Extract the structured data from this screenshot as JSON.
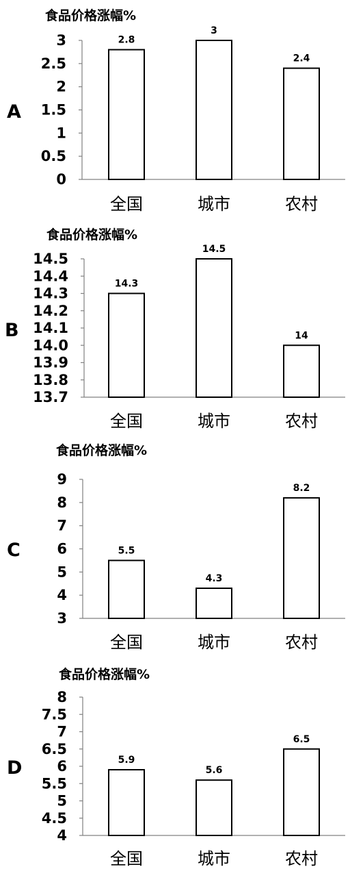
{
  "chart_data": [
    {
      "type": "bar",
      "panel_label": "A",
      "title": "食品价格涨幅%",
      "categories": [
        "全国",
        "城市",
        "农村"
      ],
      "values": [
        2.8,
        3,
        2.4
      ],
      "value_labels": [
        "2.8",
        "3",
        "2.4"
      ],
      "ylim": [
        0,
        3
      ],
      "yticks": [
        "0",
        "0.5",
        "1",
        "1.5",
        "2",
        "2.5",
        "3"
      ],
      "grid": false
    },
    {
      "type": "bar",
      "panel_label": "B",
      "title": "食品价格涨幅%",
      "categories": [
        "全国",
        "城市",
        "农村"
      ],
      "values": [
        14.3,
        14.5,
        14.0
      ],
      "value_labels": [
        "14.3",
        "14.5",
        "14"
      ],
      "ylim": [
        13.7,
        14.5
      ],
      "yticks": [
        "13.7",
        "13.8",
        "13.9",
        "14.0",
        "14.1",
        "14.2",
        "14.3",
        "14.4",
        "14.5"
      ],
      "grid": false
    },
    {
      "type": "bar",
      "panel_label": "C",
      "title": "食品价格涨幅%",
      "categories": [
        "全国",
        "城市",
        "农村"
      ],
      "values": [
        5.5,
        4.3,
        8.2
      ],
      "value_labels": [
        "5.5",
        "4.3",
        "8.2"
      ],
      "ylim": [
        3,
        9
      ],
      "yticks": [
        "3",
        "4",
        "5",
        "6",
        "7",
        "8",
        "9"
      ],
      "grid": false
    },
    {
      "type": "bar",
      "panel_label": "D",
      "title": "食品价格涨幅%",
      "categories": [
        "全国",
        "城市",
        "农村"
      ],
      "values": [
        5.9,
        5.6,
        6.5
      ],
      "value_labels": [
        "5.9",
        "5.6",
        "6.5"
      ],
      "ylim": [
        4,
        8
      ],
      "yticks": [
        "4",
        "4.5",
        "5",
        "5.5",
        "6",
        "6.5",
        "7",
        "7.5",
        "8"
      ],
      "grid": false
    }
  ]
}
